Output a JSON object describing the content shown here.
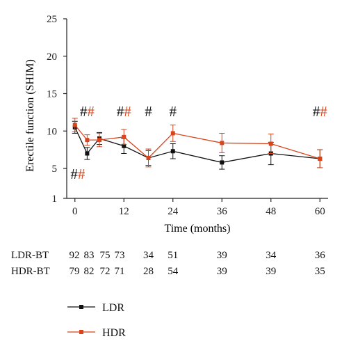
{
  "chart_data": {
    "type": "line",
    "xlabel": "Time (months)",
    "ylabel": "Erectile function (SHIM)",
    "xlim": [
      -2,
      62
    ],
    "ylim": [
      1,
      25
    ],
    "xticks": [
      0,
      12,
      24,
      36,
      48,
      60
    ],
    "yticks": [
      1,
      5,
      10,
      15,
      20,
      25
    ],
    "series": [
      {
        "name": "LDR",
        "color": "#111111",
        "x": [
          0,
          3,
          6,
          12,
          18,
          24,
          36,
          48,
          60
        ],
        "y": [
          10.5,
          7.0,
          9.0,
          8.0,
          6.4,
          7.3,
          5.8,
          7.0,
          6.3
        ],
        "err": [
          0.8,
          0.8,
          0.8,
          1.0,
          1.0,
          1.0,
          0.9,
          1.5,
          1.2
        ]
      },
      {
        "name": "HDR",
        "color": "#d9441b",
        "x": [
          0,
          3,
          6,
          12,
          18,
          24,
          36,
          48,
          60
        ],
        "y": [
          10.8,
          8.8,
          8.8,
          9.2,
          6.4,
          9.7,
          8.4,
          8.3,
          6.3
        ],
        "err": [
          0.9,
          0.7,
          0.9,
          1.0,
          1.2,
          1.1,
          1.3,
          1.3,
          1.2
        ]
      }
    ],
    "annotations": [
      {
        "x": 0.7,
        "y": 3.6,
        "marks": [
          {
            "text": "#",
            "color": "#111111"
          },
          {
            "text": "#",
            "color": "#d9441b"
          }
        ]
      },
      {
        "x": 3.0,
        "y": 12.0,
        "marks": [
          {
            "text": "#",
            "color": "#111111"
          },
          {
            "text": "#",
            "color": "#d9441b"
          }
        ]
      },
      {
        "x": 12.0,
        "y": 12.0,
        "marks": [
          {
            "text": "#",
            "color": "#111111"
          },
          {
            "text": "#",
            "color": "#d9441b"
          }
        ]
      },
      {
        "x": 18.0,
        "y": 12.0,
        "marks": [
          {
            "text": "#",
            "color": "#111111"
          }
        ]
      },
      {
        "x": 24.0,
        "y": 12.0,
        "marks": [
          {
            "text": "#",
            "color": "#111111"
          }
        ]
      },
      {
        "x": 60.0,
        "y": 12.0,
        "marks": [
          {
            "text": "#",
            "color": "#111111"
          },
          {
            "text": "#",
            "color": "#d9441b"
          }
        ]
      }
    ],
    "at_risk": {
      "x": [
        0,
        3,
        6,
        12,
        18,
        24,
        36,
        48,
        60
      ],
      "rows": [
        {
          "label": "LDR-BT",
          "values": [
            "92",
            "83",
            "75",
            "73",
            "34",
            "51",
            "39",
            "34",
            "36"
          ]
        },
        {
          "label": "HDR-BT",
          "values": [
            "79",
            "82",
            "72",
            "71",
            "28",
            "54",
            "39",
            "39",
            "35"
          ]
        }
      ]
    },
    "legend": {
      "placement": "bottom-left",
      "items": [
        {
          "name": "LDR",
          "color": "#111111"
        },
        {
          "name": "HDR",
          "color": "#d9441b"
        }
      ]
    }
  }
}
